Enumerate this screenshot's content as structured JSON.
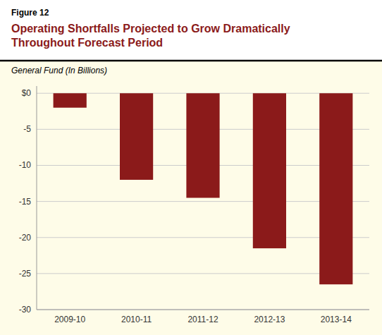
{
  "chart_data": {
    "type": "bar",
    "annotations": [
      "Figure 12"
    ],
    "title": [
      "Operating Shortfalls Projected to Grow Dramatically",
      "Throughout Forecast Period"
    ],
    "subtitle": "General Fund (In Billions)",
    "categories": [
      "2009-10",
      "2010-11",
      "2011-12",
      "2012-13",
      "2013-14"
    ],
    "values": [
      -2.0,
      -12.0,
      -14.5,
      -21.5,
      -26.5
    ],
    "color": "#8B1A1A",
    "ylim": [
      -30,
      1
    ],
    "yticks": [
      {
        "value": 0,
        "label": "$0"
      },
      -5,
      -10,
      -15,
      -20,
      -25,
      -30
    ],
    "grid": true
  }
}
